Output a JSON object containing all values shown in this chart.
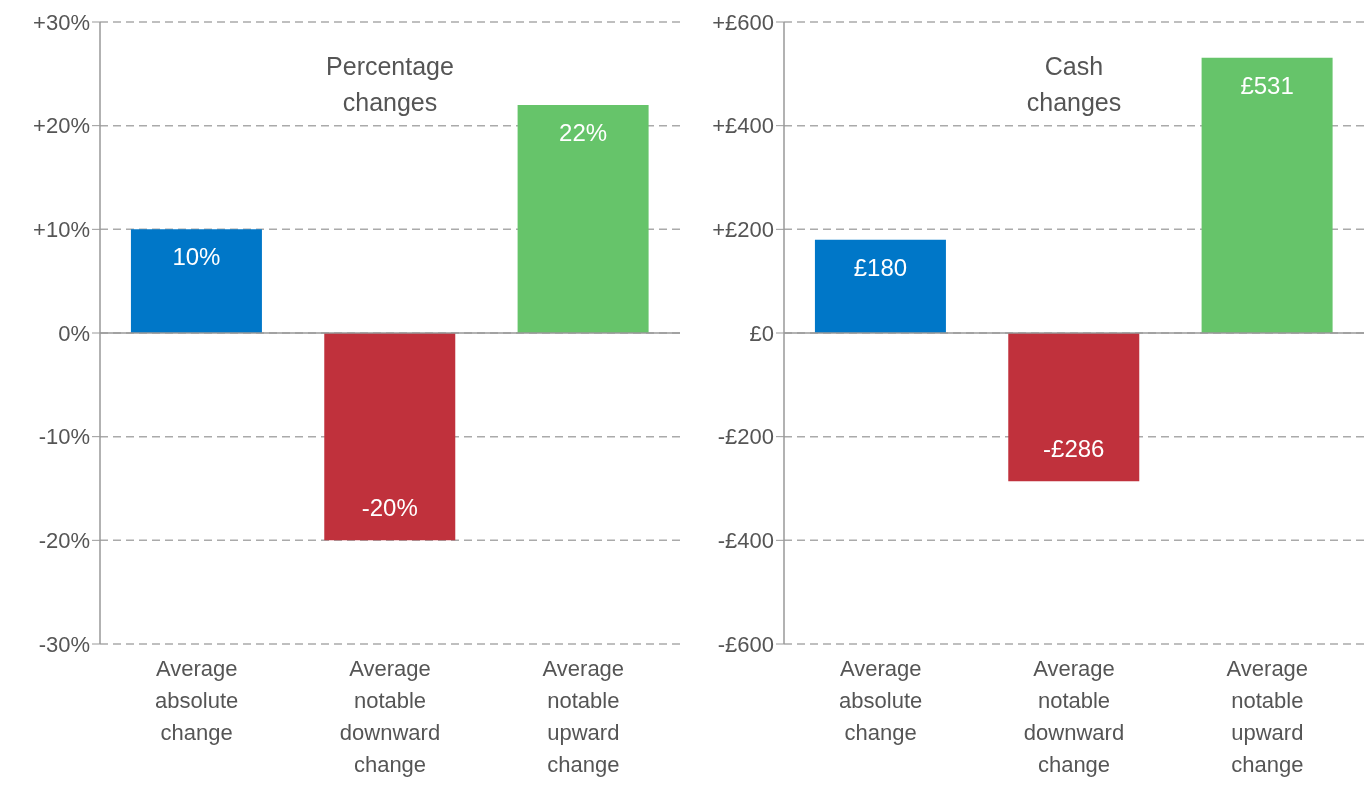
{
  "chart_data": [
    {
      "type": "bar",
      "title": "Percentage changes",
      "categories": [
        "Average absolute change",
        "Average notable downward change",
        "Average notable upward change"
      ],
      "values": [
        10,
        -20,
        22
      ],
      "colors": [
        "#0077c8",
        "#c0313c",
        "#66c46a"
      ],
      "value_labels": [
        "10%",
        "-20%",
        "22%"
      ],
      "ylim": [
        -30,
        30
      ],
      "yticks": [
        {
          "value": -30,
          "label": "-30%"
        },
        {
          "value": -20,
          "label": "-20%"
        },
        {
          "value": -10,
          "label": "-10%"
        },
        {
          "value": 0,
          "label": "0%"
        },
        {
          "value": 10,
          "label": "+10%"
        },
        {
          "value": 20,
          "label": "+20%"
        },
        {
          "value": 30,
          "label": "+30%"
        }
      ],
      "grid": "y",
      "ref_lines": [
        {
          "axis": "y",
          "value": 0,
          "color": "#999999"
        }
      ]
    },
    {
      "type": "bar",
      "title": "Cash changes",
      "categories": [
        "Average absolute change",
        "Average notable downward change",
        "Average notable upward change"
      ],
      "values": [
        180,
        -286,
        531
      ],
      "colors": [
        "#0077c8",
        "#c0313c",
        "#66c46a"
      ],
      "value_labels": [
        "£180",
        "-£286",
        "£531"
      ],
      "ylim": [
        -600,
        600
      ],
      "yticks": [
        {
          "value": -600,
          "label": "-£600"
        },
        {
          "value": -400,
          "label": "-£400"
        },
        {
          "value": -200,
          "label": "-£200"
        },
        {
          "value": 0,
          "label": "£0"
        },
        {
          "value": 200,
          "label": "+£200"
        },
        {
          "value": 400,
          "label": "+£400"
        },
        {
          "value": 600,
          "label": "+£600"
        }
      ],
      "grid": "y",
      "ref_lines": [
        {
          "axis": "y",
          "value": 0,
          "color": "#999999"
        }
      ]
    }
  ]
}
